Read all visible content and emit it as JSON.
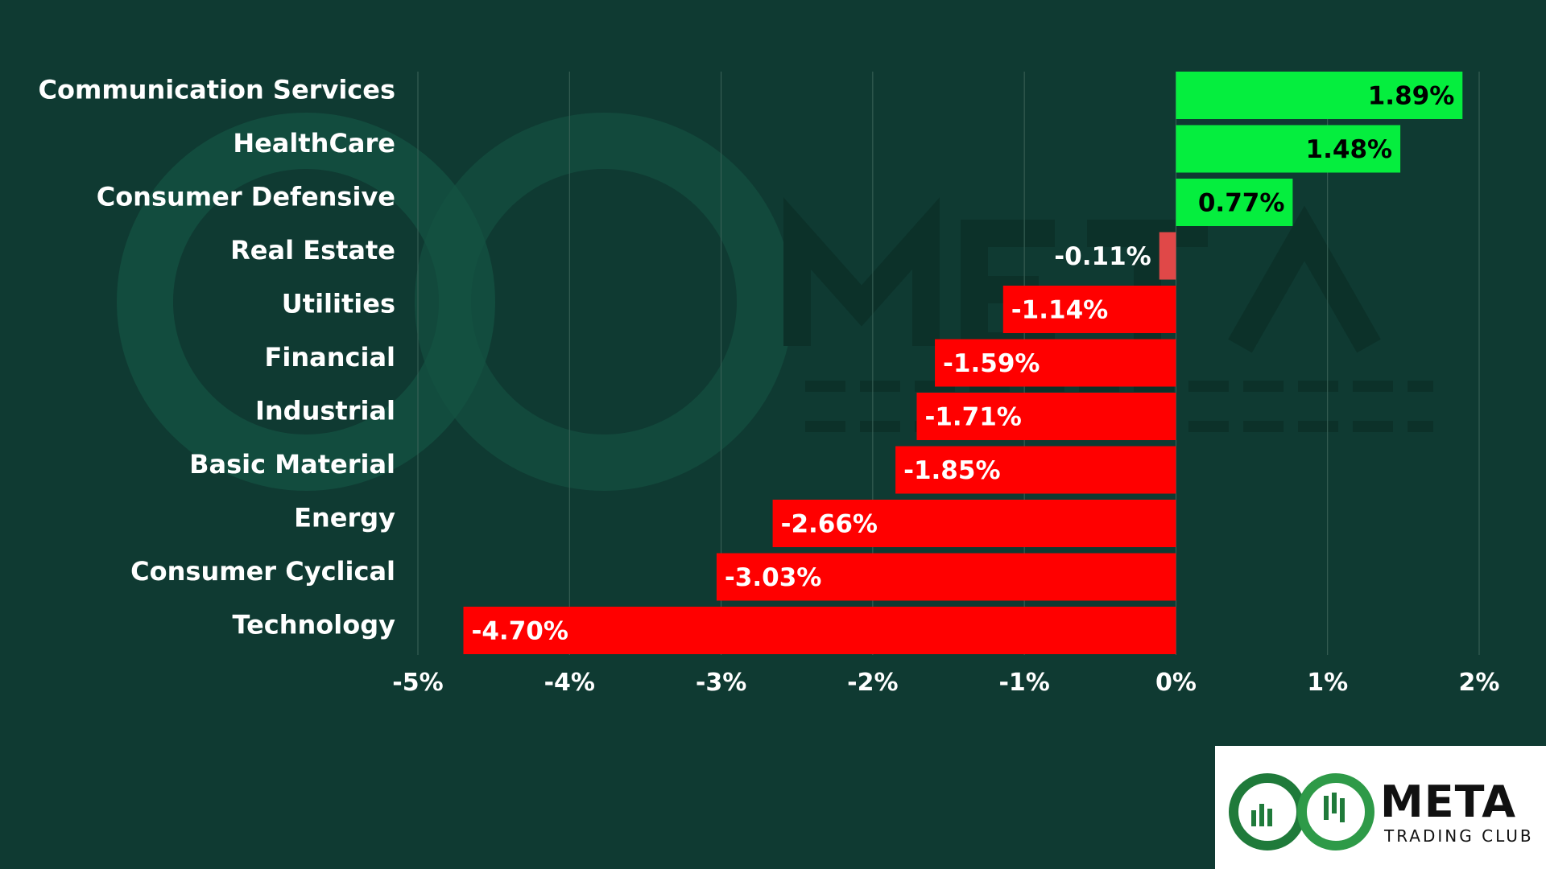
{
  "chart_data": {
    "type": "bar",
    "orientation": "horizontal",
    "categories": [
      "Communication Services",
      "HealthCare",
      "Consumer Defensive",
      "Real Estate",
      "Utilities",
      "Financial",
      "Industrial",
      "Basic Material",
      "Energy",
      "Consumer Cyclical",
      "Technology"
    ],
    "values": [
      1.89,
      1.48,
      0.77,
      -0.11,
      -1.14,
      -1.59,
      -1.71,
      -1.85,
      -2.66,
      -3.03,
      -4.7
    ],
    "data_labels": [
      "1.89%",
      "1.48%",
      "0.77%",
      "-0.11%",
      "-1.14%",
      "-1.59%",
      "-1.71%",
      "-1.85%",
      "-2.66%",
      "-3.03%",
      "-4.70%"
    ],
    "xlim": [
      -5,
      2
    ],
    "x_ticks": [
      -5,
      -4,
      -3,
      -2,
      -1,
      0,
      1,
      2
    ],
    "x_tick_labels": [
      "-5%",
      "-4%",
      "-3%",
      "-2%",
      "-1%",
      "0%",
      "1%",
      "2%"
    ],
    "grid": "vertical",
    "colors": {
      "positive": "#05ee3e",
      "negative": "#ff0000",
      "small_negative": "#e04848",
      "background": "#0f3a32"
    }
  },
  "logo": {
    "name": "META",
    "subtitle": "TRADING CLUB"
  }
}
